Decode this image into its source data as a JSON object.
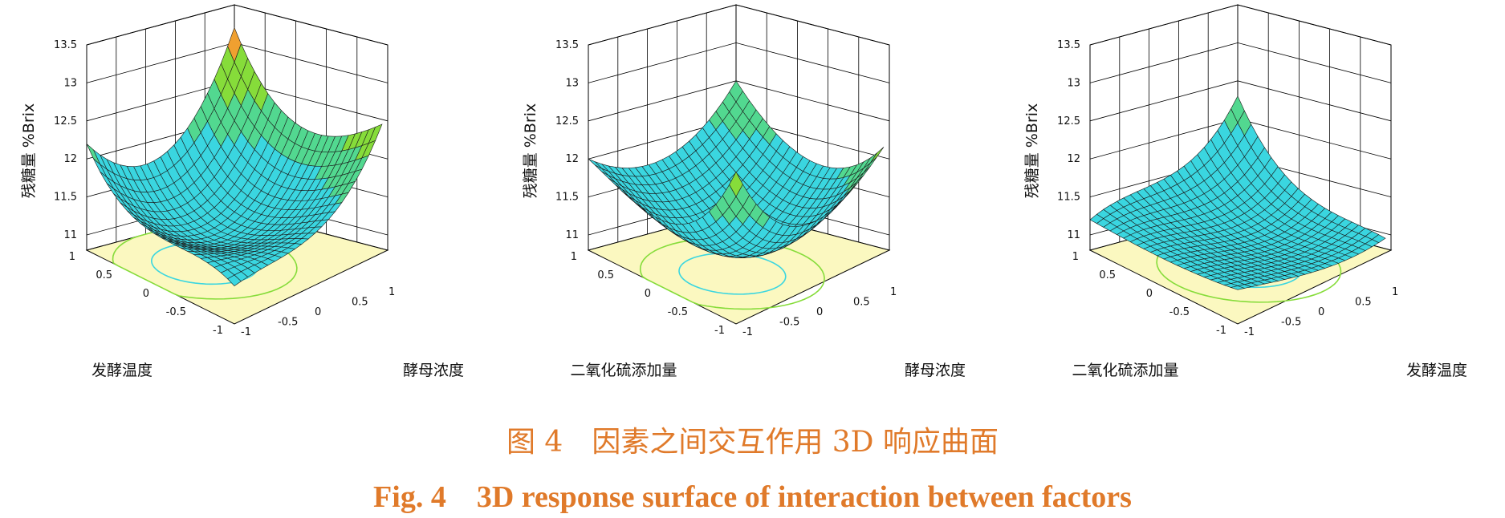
{
  "figure": {
    "caption_cn": "图 4　因素之间交互作用 3D 响应曲面",
    "caption_en": "Fig. 4　3D response surface of interaction between factors"
  },
  "chart_data": [
    {
      "type": "surface3d",
      "title": "",
      "zlabel": "残糖量 %Brix",
      "x_label": "酵母浓度",
      "y_label": "发酵温度",
      "x_ticks": [
        -1,
        -0.5,
        0,
        0.5,
        1
      ],
      "y_ticks": [
        -1,
        -0.5,
        0,
        0.5,
        1
      ],
      "z_ticks": [
        11,
        11.5,
        12,
        12.5,
        13,
        13.5
      ],
      "xlim": [
        -1,
        1
      ],
      "ylim": [
        -1,
        1
      ],
      "zlim": [
        10.8,
        13.5
      ],
      "corners": {
        "x-1_y-1": 11.3,
        "x1_y-1": 12.9,
        "x-1_y1": 12.2,
        "x1_y1": 13.2
      },
      "minimum": {
        "x": -0.2,
        "y": 0.2,
        "z": 11.15
      },
      "grid": true,
      "floor_color": "#fbf8c0"
    },
    {
      "type": "surface3d",
      "title": "",
      "zlabel": "残糖量 %Brix",
      "x_label": "酵母浓度",
      "y_label": "二氧化硫添加量",
      "x_ticks": [
        -1,
        -0.5,
        0,
        0.5,
        1
      ],
      "y_ticks": [
        -1,
        -0.5,
        0,
        0.5,
        1
      ],
      "z_ticks": [
        11,
        11.5,
        12,
        12.5,
        13,
        13.5
      ],
      "xlim": [
        -1,
        1
      ],
      "ylim": [
        -1,
        1
      ],
      "zlim": [
        10.8,
        13.5
      ],
      "corners": {
        "x-1_y-1": 12.8,
        "x1_y-1": 12.6,
        "x-1_y1": 12.0,
        "x1_y1": 12.5
      },
      "minimum": {
        "x": -0.15,
        "y": -0.1,
        "z": 11.1
      },
      "grid": true,
      "floor_color": "#fbf8c0"
    },
    {
      "type": "surface3d",
      "title": "",
      "zlabel": "残糖量 %Brix",
      "x_label": "发酵温度",
      "y_label": "二氧化硫添加量",
      "x_ticks": [
        -1,
        -0.5,
        0,
        0.5,
        1
      ],
      "y_ticks": [
        -1,
        -0.5,
        0,
        0.5,
        1
      ],
      "z_ticks": [
        11,
        11.5,
        12,
        12.5,
        13,
        13.5
      ],
      "xlim": [
        -1,
        1
      ],
      "ylim": [
        -1,
        1
      ],
      "zlim": [
        10.8,
        13.5
      ],
      "corners": {
        "x-1_y-1": 11.25,
        "x1_y-1": 11.4,
        "x-1_y1": 11.2,
        "x1_y1": 12.3
      },
      "minimum": {
        "x": 0.1,
        "y": -0.05,
        "z": 11.1
      },
      "grid": true,
      "floor_color": "#fbf8c0"
    }
  ]
}
